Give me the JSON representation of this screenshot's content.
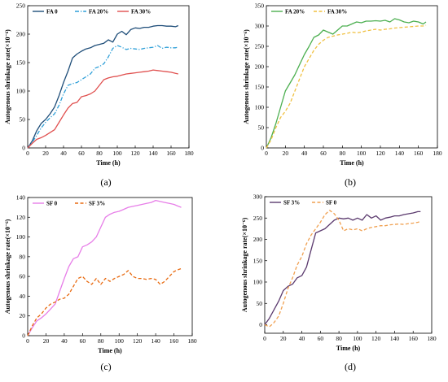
{
  "chart_data": [
    {
      "type": "line",
      "caption": "(a)",
      "xlabel": "Time (h)",
      "ylabel": "Autogenous shrinkage rate(×10⁻⁶)",
      "xlim": [
        0,
        180
      ],
      "ylim": [
        0,
        250
      ],
      "xticks": [
        0,
        20,
        40,
        60,
        80,
        100,
        120,
        140,
        160,
        180
      ],
      "yticks": [
        0,
        50,
        100,
        150,
        200,
        250
      ],
      "legend_position": "top-left",
      "series": [
        {
          "name": "FA 0",
          "color": "#1f4e79",
          "dash": "solid",
          "x": [
            0,
            5,
            10,
            15,
            20,
            25,
            30,
            35,
            40,
            45,
            50,
            55,
            60,
            65,
            70,
            75,
            80,
            85,
            90,
            95,
            100,
            105,
            110,
            115,
            120,
            125,
            130,
            135,
            140,
            145,
            150,
            155,
            160,
            165,
            168
          ],
          "y": [
            0,
            12,
            30,
            43,
            50,
            60,
            72,
            92,
            115,
            135,
            158,
            165,
            170,
            174,
            176,
            180,
            182,
            184,
            190,
            186,
            200,
            205,
            199,
            208,
            211,
            210,
            212,
            212,
            214,
            215,
            215,
            214,
            214,
            213,
            215
          ]
        },
        {
          "name": "FA 20%",
          "color": "#2e9fd8",
          "dash": "dashdot",
          "x": [
            0,
            5,
            10,
            15,
            20,
            25,
            30,
            35,
            40,
            45,
            50,
            55,
            60,
            65,
            70,
            75,
            80,
            85,
            90,
            95,
            100,
            105,
            110,
            115,
            120,
            125,
            130,
            135,
            140,
            145,
            150,
            155,
            160,
            165,
            168
          ],
          "y": [
            0,
            10,
            22,
            35,
            45,
            53,
            60,
            75,
            95,
            110,
            113,
            115,
            120,
            125,
            130,
            140,
            143,
            148,
            160,
            175,
            180,
            177,
            173,
            175,
            174,
            173,
            175,
            176,
            177,
            180,
            175,
            177,
            176,
            176,
            177
          ]
        },
        {
          "name": "FA 30%",
          "color": "#e0504f",
          "dash": "solid",
          "x": [
            0,
            5,
            10,
            15,
            20,
            25,
            30,
            35,
            40,
            45,
            50,
            55,
            60,
            65,
            70,
            75,
            80,
            85,
            90,
            95,
            100,
            105,
            110,
            115,
            120,
            125,
            130,
            135,
            140,
            145,
            150,
            155,
            160,
            165,
            168
          ],
          "y": [
            0,
            8,
            15,
            18,
            22,
            27,
            32,
            45,
            58,
            70,
            78,
            80,
            90,
            92,
            95,
            100,
            110,
            120,
            123,
            125,
            126,
            128,
            130,
            131,
            132,
            133,
            134,
            135,
            137,
            136,
            135,
            134,
            133,
            131,
            130
          ]
        }
      ]
    },
    {
      "type": "line",
      "caption": "(b)",
      "xlabel": "Time (h)",
      "ylabel": "Autogenous shrinkage rate(×10⁻⁶)",
      "xlim": [
        0,
        180
      ],
      "ylim": [
        0,
        350
      ],
      "xticks": [
        0,
        20,
        40,
        60,
        80,
        100,
        120,
        140,
        160,
        180
      ],
      "yticks": [
        0,
        50,
        100,
        150,
        200,
        250,
        300,
        350
      ],
      "legend_position": "top-left",
      "series": [
        {
          "name": "FA 20%",
          "color": "#4caf50",
          "dash": "solid",
          "x": [
            0,
            5,
            10,
            15,
            20,
            25,
            30,
            35,
            40,
            45,
            50,
            55,
            60,
            65,
            70,
            75,
            80,
            85,
            90,
            95,
            100,
            105,
            110,
            115,
            120,
            125,
            130,
            135,
            140,
            145,
            150,
            155,
            160,
            165,
            168
          ],
          "y": [
            0,
            25,
            60,
            100,
            140,
            160,
            180,
            205,
            230,
            250,
            272,
            278,
            290,
            285,
            280,
            290,
            300,
            300,
            305,
            310,
            308,
            312,
            312,
            313,
            312,
            314,
            310,
            318,
            315,
            310,
            308,
            312,
            310,
            305,
            310
          ]
        },
        {
          "name": "FA 30%",
          "color": "#f0c040",
          "dash": "dashed",
          "x": [
            0,
            5,
            10,
            15,
            20,
            25,
            30,
            35,
            40,
            45,
            50,
            55,
            60,
            65,
            70,
            75,
            80,
            85,
            90,
            95,
            100,
            105,
            110,
            115,
            120,
            125,
            130,
            135,
            140,
            145,
            150,
            155,
            160,
            165,
            168
          ],
          "y": [
            0,
            20,
            50,
            75,
            90,
            110,
            140,
            170,
            200,
            220,
            240,
            255,
            265,
            272,
            275,
            278,
            280,
            282,
            285,
            283,
            285,
            288,
            290,
            292,
            290,
            292,
            293,
            295,
            296,
            297,
            298,
            299,
            300,
            300,
            302
          ]
        }
      ]
    },
    {
      "type": "line",
      "caption": "(c)",
      "xlabel": "Time (h)",
      "ylabel": "Autogenous shrinkage rate(×10⁻⁶)",
      "xlim": [
        0,
        180
      ],
      "ylim": [
        0,
        140
      ],
      "xticks": [
        0,
        20,
        40,
        60,
        80,
        100,
        120,
        140,
        160,
        180
      ],
      "yticks": [
        0,
        20,
        40,
        60,
        80,
        100,
        120,
        140
      ],
      "legend_position": "top-left",
      "series": [
        {
          "name": "SF 0",
          "color": "#e77ee8",
          "dash": "solid",
          "x": [
            0,
            5,
            10,
            15,
            20,
            25,
            30,
            35,
            40,
            45,
            50,
            55,
            60,
            65,
            70,
            75,
            80,
            85,
            90,
            95,
            100,
            105,
            110,
            115,
            120,
            125,
            130,
            135,
            140,
            145,
            150,
            155,
            160,
            165,
            168
          ],
          "y": [
            0,
            8,
            15,
            18,
            22,
            27,
            32,
            45,
            58,
            70,
            78,
            80,
            90,
            92,
            95,
            100,
            110,
            120,
            123,
            125,
            126,
            128,
            130,
            131,
            132,
            133,
            134,
            135,
            137,
            136,
            135,
            134,
            133,
            131,
            130
          ]
        },
        {
          "name": "SF 3%",
          "color": "#e86a10",
          "dash": "dashed",
          "x": [
            0,
            5,
            10,
            15,
            20,
            25,
            30,
            35,
            40,
            45,
            50,
            55,
            60,
            65,
            70,
            75,
            80,
            85,
            90,
            95,
            100,
            105,
            110,
            115,
            120,
            125,
            130,
            135,
            140,
            145,
            150,
            155,
            160,
            165,
            168
          ],
          "y": [
            0,
            10,
            18,
            22,
            28,
            32,
            34,
            37,
            38,
            42,
            50,
            58,
            60,
            55,
            52,
            58,
            52,
            58,
            55,
            58,
            60,
            62,
            66,
            60,
            58,
            58,
            57,
            58,
            57,
            52,
            55,
            60,
            65,
            67,
            68
          ]
        }
      ]
    },
    {
      "type": "line",
      "caption": "(d)",
      "xlabel": "Time (h)",
      "ylabel": "Autogenous shrinkage rate(×10⁻⁶)",
      "xlim": [
        0,
        180
      ],
      "ylim": [
        -20,
        300
      ],
      "xticks": [
        0,
        20,
        40,
        60,
        80,
        100,
        120,
        140,
        160,
        180
      ],
      "yticks": [
        0,
        50,
        100,
        150,
        200,
        250,
        300
      ],
      "legend_position": "top-left",
      "series": [
        {
          "name": "SF 3%",
          "color": "#5b3a6e",
          "dash": "solid",
          "x": [
            0,
            5,
            10,
            15,
            20,
            25,
            30,
            35,
            40,
            45,
            50,
            55,
            60,
            65,
            70,
            75,
            80,
            85,
            90,
            95,
            100,
            105,
            110,
            115,
            120,
            125,
            130,
            135,
            140,
            145,
            150,
            155,
            160,
            165,
            168
          ],
          "y": [
            0,
            15,
            35,
            55,
            80,
            90,
            95,
            110,
            115,
            135,
            175,
            215,
            220,
            225,
            235,
            245,
            250,
            248,
            250,
            245,
            250,
            245,
            258,
            250,
            255,
            245,
            250,
            252,
            255,
            255,
            258,
            260,
            262,
            265,
            265
          ]
        },
        {
          "name": "SF 0",
          "color": "#f0a050",
          "dash": "dashed",
          "x": [
            0,
            5,
            10,
            15,
            20,
            25,
            30,
            35,
            40,
            45,
            50,
            55,
            60,
            65,
            70,
            75,
            80,
            85,
            90,
            95,
            100,
            105,
            110,
            115,
            120,
            125,
            130,
            135,
            140,
            145,
            150,
            155,
            160,
            165,
            168
          ],
          "y": [
            0,
            -5,
            5,
            20,
            50,
            85,
            110,
            140,
            160,
            190,
            210,
            225,
            240,
            258,
            268,
            260,
            245,
            220,
            225,
            222,
            225,
            220,
            225,
            228,
            230,
            232,
            232,
            234,
            235,
            236,
            235,
            237,
            238,
            240,
            242
          ]
        }
      ]
    }
  ]
}
